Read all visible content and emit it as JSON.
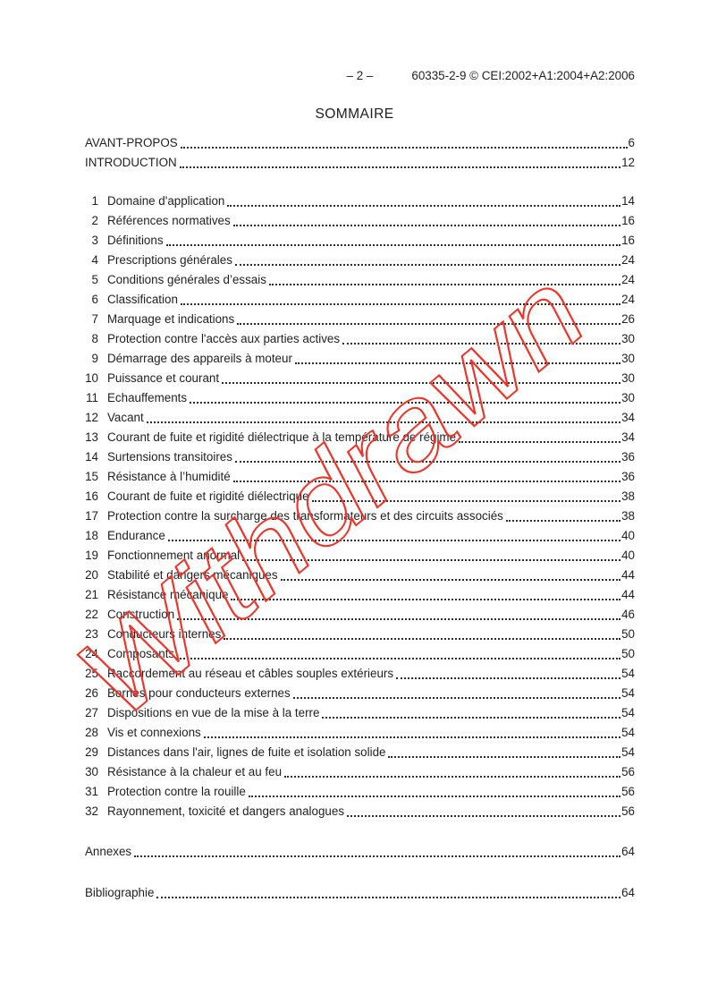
{
  "header": {
    "page_number": "– 2 –",
    "doc_ref": "60335-2-9 © CEI:2002+A1:2004+A2:2006"
  },
  "title": "SOMMAIRE",
  "toc": {
    "front_entries": [
      {
        "label": "AVANT-PROPOS",
        "page": "6"
      },
      {
        "label": "INTRODUCTION",
        "page": "12"
      }
    ],
    "clauses": [
      {
        "num": "1",
        "label": "Domaine d'application",
        "page": "14"
      },
      {
        "num": "2",
        "label": "Références normatives",
        "page": "16"
      },
      {
        "num": "3",
        "label": "Définitions",
        "page": "16"
      },
      {
        "num": "4",
        "label": "Prescriptions générales",
        "page": "24"
      },
      {
        "num": "5",
        "label": "Conditions générales d’essais",
        "page": "24"
      },
      {
        "num": "6",
        "label": "Classification",
        "page": "24"
      },
      {
        "num": "7",
        "label": "Marquage et indications",
        "page": "26"
      },
      {
        "num": "8",
        "label": "Protection contre l'accès aux parties actives",
        "page": "30"
      },
      {
        "num": "9",
        "label": "Démarrage des appareils à moteur",
        "page": "30"
      },
      {
        "num": "10",
        "label": "Puissance et courant",
        "page": "30"
      },
      {
        "num": "11",
        "label": "Echauffements",
        "page": "30"
      },
      {
        "num": "12",
        "label": "Vacant",
        "page": "34"
      },
      {
        "num": "13",
        "label": "Courant de fuite et rigidité diélectrique à la température de régime",
        "page": "34"
      },
      {
        "num": "14",
        "label": "Surtensions transitoires",
        "page": "36"
      },
      {
        "num": "15",
        "label": "Résistance à l’humidité",
        "page": "36"
      },
      {
        "num": "16",
        "label": "Courant de fuite et rigidité diélectrique",
        "page": "38"
      },
      {
        "num": "17",
        "label": "Protection contre la surcharge des transformateurs et des circuits associés",
        "page": "38"
      },
      {
        "num": "18",
        "label": "Endurance",
        "page": "40"
      },
      {
        "num": "19",
        "label": "Fonctionnement anormal",
        "page": "40"
      },
      {
        "num": "20",
        "label": "Stabilité et dangers mécaniques",
        "page": "44"
      },
      {
        "num": "21",
        "label": "Résistance mécanique",
        "page": "44"
      },
      {
        "num": "22",
        "label": "Construction",
        "page": "46"
      },
      {
        "num": "23",
        "label": "Conducteurs internes",
        "page": "50"
      },
      {
        "num": "24",
        "label": "Composants",
        "page": "50"
      },
      {
        "num": "25",
        "label": "Raccordement au réseau et câbles souples extérieurs",
        "page": "54"
      },
      {
        "num": "26",
        "label": "Bornes pour conducteurs externes",
        "page": "54"
      },
      {
        "num": "27",
        "label": "Dispositions en vue de la mise à la terre",
        "page": "54"
      },
      {
        "num": "28",
        "label": "Vis et connexions",
        "page": "54"
      },
      {
        "num": "29",
        "label": "Distances dans l'air, lignes de fuite et isolation solide",
        "page": "54"
      },
      {
        "num": "30",
        "label": "Résistance à la chaleur et au feu",
        "page": "56"
      },
      {
        "num": "31",
        "label": "Protection contre la rouille",
        "page": "56"
      },
      {
        "num": "32",
        "label": "Rayonnement, toxicité et dangers analogues",
        "page": "56"
      }
    ],
    "back_entries": [
      {
        "label": "Annexes",
        "page": "64"
      },
      {
        "label": "Bibliographie",
        "page": "64"
      }
    ]
  },
  "watermark": {
    "text": "Withdrawn",
    "color": "#ee352b"
  }
}
